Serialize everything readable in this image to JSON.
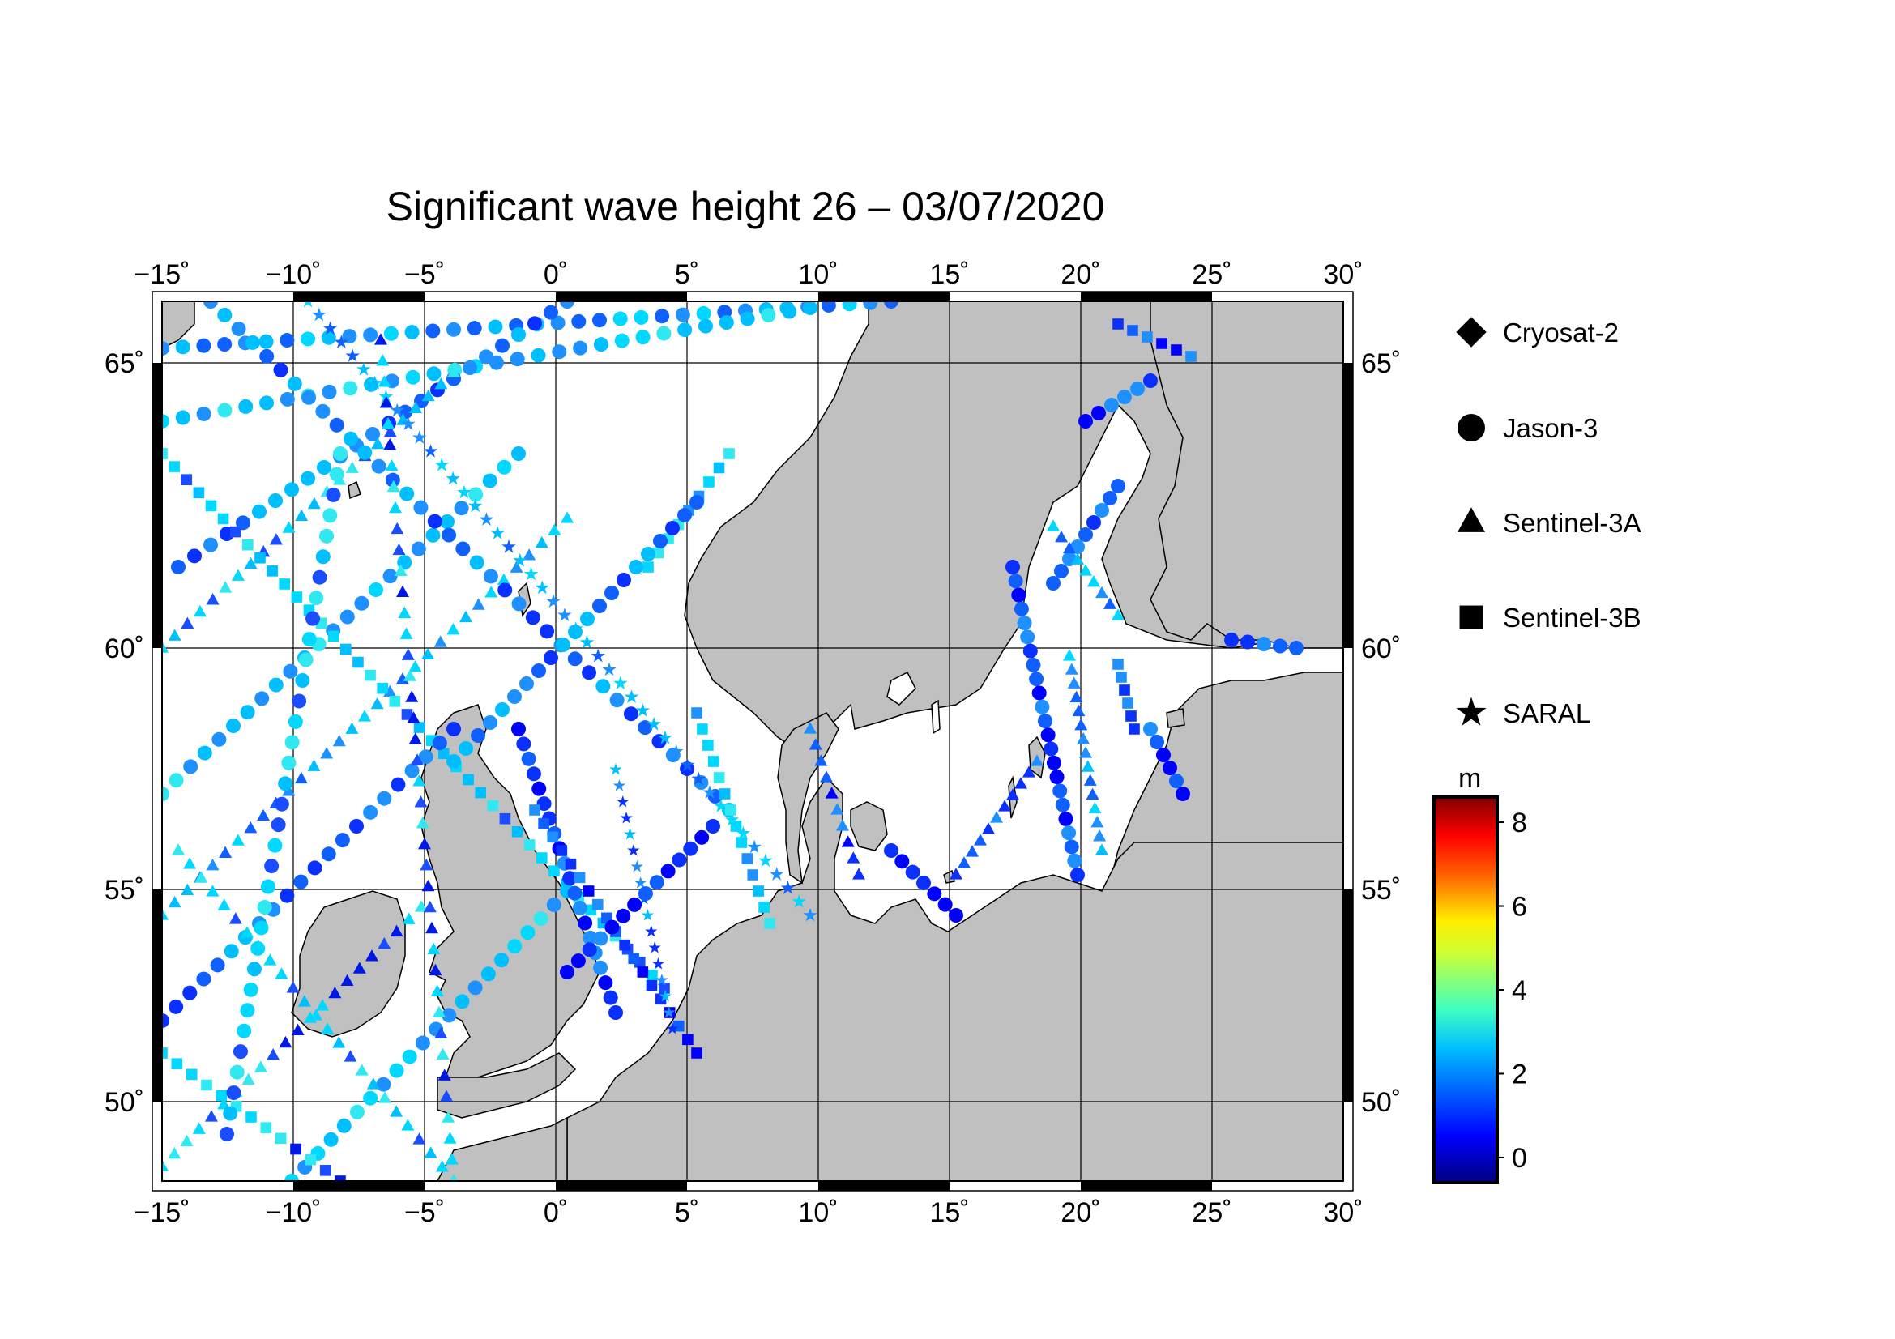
{
  "title": "Significant wave height 26 – 03/07/2020",
  "map": {
    "lon_range": [
      -15,
      30
    ],
    "lat_range": [
      48.3,
      66.3
    ],
    "lon_ticks": [
      "−15˚",
      "−10˚",
      "−5˚",
      "0˚",
      "5˚",
      "10˚",
      "15˚",
      "20˚",
      "25˚",
      "30˚"
    ],
    "lat_ticks": [
      "50˚",
      "55˚",
      "60˚",
      "65˚"
    ],
    "land_color": "#c0c0c0",
    "sea_color": "#ffffff"
  },
  "legend": {
    "items": [
      {
        "label": "Cryosat-2",
        "marker": "diamond"
      },
      {
        "label": "Jason-3",
        "marker": "circle"
      },
      {
        "label": "Sentinel-3A",
        "marker": "triangle"
      },
      {
        "label": "Sentinel-3B",
        "marker": "square"
      },
      {
        "label": "SARAL",
        "marker": "star"
      }
    ]
  },
  "colorbar": {
    "unit": "m",
    "ticks": [
      "8",
      "6",
      "4",
      "2",
      "0"
    ],
    "range": [
      -0.6,
      8.6
    ],
    "colormap": "jet"
  }
}
